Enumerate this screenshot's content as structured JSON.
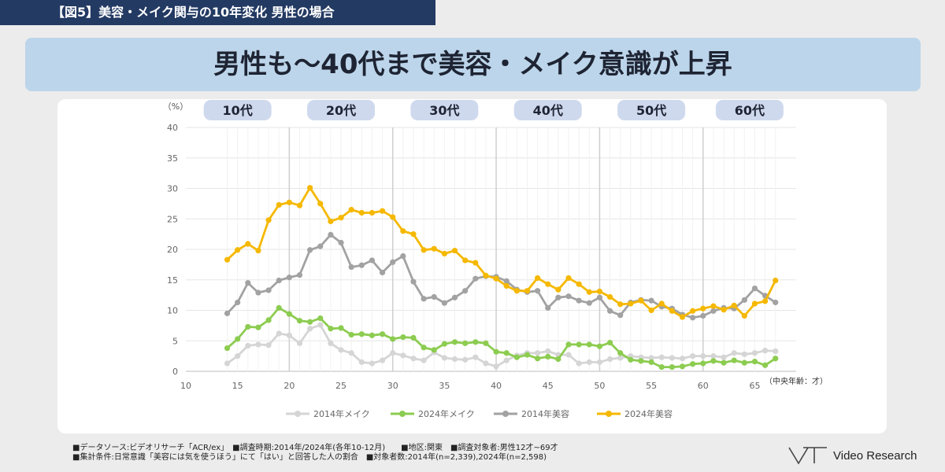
{
  "figure_label": "【図5】美容・メイク関与の10年変化 男性の場合",
  "headline": "男性も～40代まで美容・メイク意識が上昇",
  "source": {
    "line1": "■データソース:ビデオリサーチ「ACR/ex」　■調査時期:2014年/2024年(各年10-12月)　　■地区:関東　■調査対象者:男性12才~69才",
    "line2": "■集計条件:日常意識「美容には気を使うほう」にて「はい」と回答した人の割合　■対象者数:2014年(n=2,339),2024年(n=2,598)"
  },
  "brand": {
    "name": "Video Research",
    "logo": "vr-logo-icon"
  },
  "chart_data": {
    "type": "line",
    "ylabel": "（%）",
    "xlabel": "（中央年齢：才）",
    "ylim": [
      0,
      40
    ],
    "yticks": [
      0,
      5,
      10,
      15,
      20,
      25,
      30,
      35,
      40
    ],
    "xlim": [
      10,
      69
    ],
    "xticks": [
      10,
      15,
      20,
      25,
      30,
      35,
      40,
      45,
      50,
      55,
      60,
      65
    ],
    "grid": "horizontal",
    "group_dividers": [
      20,
      30,
      40,
      50,
      60
    ],
    "groups": [
      {
        "label": "10代",
        "x_center": 15
      },
      {
        "label": "20代",
        "x_center": 25
      },
      {
        "label": "30代",
        "x_center": 35
      },
      {
        "label": "40代",
        "x_center": 45
      },
      {
        "label": "50代",
        "x_center": 55
      },
      {
        "label": "60代",
        "x_center": 64.5
      }
    ],
    "legend_position": "bottom",
    "x": [
      14,
      15,
      16,
      17,
      18,
      19,
      20,
      21,
      22,
      23,
      24,
      25,
      26,
      27,
      28,
      29,
      30,
      31,
      32,
      33,
      34,
      35,
      36,
      37,
      38,
      39,
      40,
      41,
      42,
      43,
      44,
      45,
      46,
      47,
      48,
      49,
      50,
      51,
      52,
      53,
      54,
      55,
      56,
      57,
      58,
      59,
      60,
      61,
      62,
      63,
      64,
      65,
      66,
      67
    ],
    "series": [
      {
        "name": "2014年メイク",
        "color": "#d5d5d5",
        "values": [
          1.3,
          2.5,
          4.2,
          4.4,
          4.3,
          6.2,
          5.9,
          4.6,
          7.0,
          7.6,
          4.6,
          3.5,
          3.0,
          1.5,
          1.3,
          1.8,
          3.0,
          2.6,
          2.1,
          1.8,
          3.1,
          2.2,
          2.0,
          1.9,
          2.3,
          1.3,
          0.8,
          1.8,
          2.6,
          3.0,
          3.0,
          3.3,
          2.7,
          2.7,
          1.3,
          1.5,
          1.5,
          2.0,
          2.2,
          2.5,
          2.3,
          2.2,
          2.3,
          2.2,
          2.1,
          2.5,
          2.5,
          2.5,
          2.3,
          3.0,
          2.8,
          3.0,
          3.4,
          3.3
        ]
      },
      {
        "name": "2024年メイク",
        "color": "#8ccc50",
        "values": [
          3.8,
          5.3,
          7.3,
          7.2,
          8.4,
          10.4,
          9.4,
          8.3,
          8.1,
          8.7,
          7.0,
          7.1,
          6.0,
          6.1,
          5.9,
          6.1,
          5.3,
          5.6,
          5.5,
          3.9,
          3.5,
          4.5,
          4.8,
          4.6,
          4.8,
          4.6,
          3.2,
          3.0,
          2.3,
          2.7,
          2.1,
          2.4,
          2.0,
          4.4,
          4.4,
          4.4,
          4.1,
          4.7,
          3.0,
          1.9,
          1.7,
          1.5,
          0.7,
          0.7,
          0.8,
          1.2,
          1.3,
          1.7,
          1.4,
          1.8,
          1.4,
          1.6,
          1.0,
          2.1
        ]
      },
      {
        "name": "2014年美容",
        "color": "#a2a2a2",
        "values": [
          9.5,
          11.3,
          14.5,
          12.9,
          13.3,
          14.9,
          15.4,
          15.8,
          19.9,
          20.5,
          22.4,
          21.1,
          17.1,
          17.4,
          18.2,
          16.2,
          17.9,
          18.9,
          14.7,
          11.9,
          12.2,
          11.2,
          12.1,
          13.2,
          15.2,
          15.6,
          15.5,
          14.8,
          13.4,
          13.0,
          13.2,
          10.4,
          12.1,
          12.3,
          11.6,
          11.2,
          12.1,
          9.9,
          9.2,
          11.3,
          11.7,
          11.6,
          10.6,
          10.3,
          9.3,
          8.8,
          9.1,
          9.9,
          10.4,
          10.3,
          11.7,
          13.6,
          12.4,
          11.3
        ]
      },
      {
        "name": "2024年美容",
        "color": "#f5b800",
        "values": [
          18.3,
          19.9,
          20.9,
          19.8,
          24.8,
          27.3,
          27.7,
          27.2,
          30.1,
          27.5,
          24.6,
          25.2,
          26.5,
          26.0,
          26.0,
          26.3,
          25.3,
          23.0,
          22.5,
          19.9,
          20.1,
          19.3,
          19.8,
          18.2,
          17.8,
          15.7,
          15.2,
          14.0,
          13.2,
          13.2,
          15.3,
          14.3,
          13.4,
          15.3,
          14.3,
          13.0,
          13.1,
          12.2,
          11.0,
          11.1,
          11.6,
          10.0,
          11.1,
          9.9,
          8.9,
          9.9,
          10.3,
          10.7,
          10.1,
          10.8,
          9.1,
          11.1,
          11.5,
          14.9
        ]
      }
    ]
  }
}
